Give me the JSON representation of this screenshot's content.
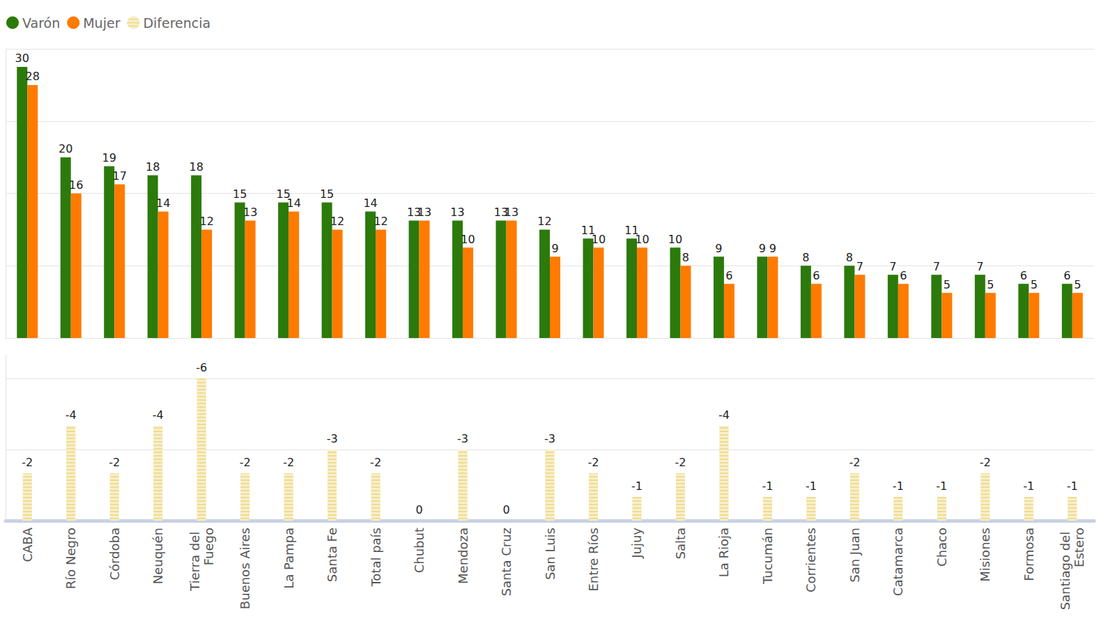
{
  "chart_data": [
    {
      "type": "bar",
      "categories": [
        "CABA",
        "Río Negro",
        "Córdoba",
        "Neuquén",
        "Tierra del Fuego",
        "Buenos Aires",
        "La Pampa",
        "Santa Fe",
        "Total país",
        "Chubut",
        "Mendoza",
        "Santa Cruz",
        "San Luis",
        "Entre Ríos",
        "Jujuy",
        "Salta",
        "La Rioja",
        "Tucumán",
        "Corrientes",
        "San Juan",
        "Catamarca",
        "Chaco",
        "Misiones",
        "Formosa",
        "Santiago del Estero"
      ],
      "series": [
        {
          "name": "Varón",
          "color": "#2b7a0b",
          "values": [
            30,
            20,
            19,
            18,
            18,
            15,
            15,
            15,
            14,
            13,
            13,
            13,
            12,
            11,
            11,
            10,
            9,
            9,
            8,
            8,
            7,
            7,
            7,
            6,
            6
          ]
        },
        {
          "name": "Mujer",
          "color": "#ff7b00",
          "values": [
            28,
            16,
            17,
            14,
            12,
            13,
            14,
            12,
            12,
            13,
            10,
            13,
            9,
            10,
            10,
            8,
            6,
            9,
            6,
            7,
            6,
            5,
            5,
            5,
            5
          ]
        }
      ],
      "ylim": [
        0,
        32
      ],
      "yticks": [
        0,
        8,
        16,
        24,
        32
      ],
      "grid": true,
      "data_labels": true,
      "tick_labels": false,
      "legend": "top-left"
    },
    {
      "type": "bar",
      "categories": [
        "CABA",
        "Río Negro",
        "Córdoba",
        "Neuquén",
        "Tierra del Fuego",
        "Buenos Aires",
        "La Pampa",
        "Santa Fe",
        "Total país",
        "Chubut",
        "Mendoza",
        "Santa Cruz",
        "San Luis",
        "Entre Ríos",
        "Jujuy",
        "Salta",
        "La Rioja",
        "Tucumán",
        "Corrientes",
        "San Juan",
        "Catamarca",
        "Chaco",
        "Misiones",
        "Formosa",
        "Santiago del Estero"
      ],
      "series": [
        {
          "name": "Diferencia",
          "color": "#efdc8f",
          "values": [
            -2,
            -4,
            -2,
            -4,
            -6,
            -2,
            -2,
            -3,
            -2,
            0,
            -3,
            0,
            -3,
            -2,
            -1,
            -2,
            -4,
            -1,
            -1,
            -2,
            -1,
            -1,
            -2,
            -1,
            -1
          ]
        }
      ],
      "ylim": [
        0,
        -7
      ],
      "yticks": [
        -6,
        -3,
        0
      ],
      "grid": true,
      "data_labels": true,
      "tick_labels": "x"
    }
  ]
}
